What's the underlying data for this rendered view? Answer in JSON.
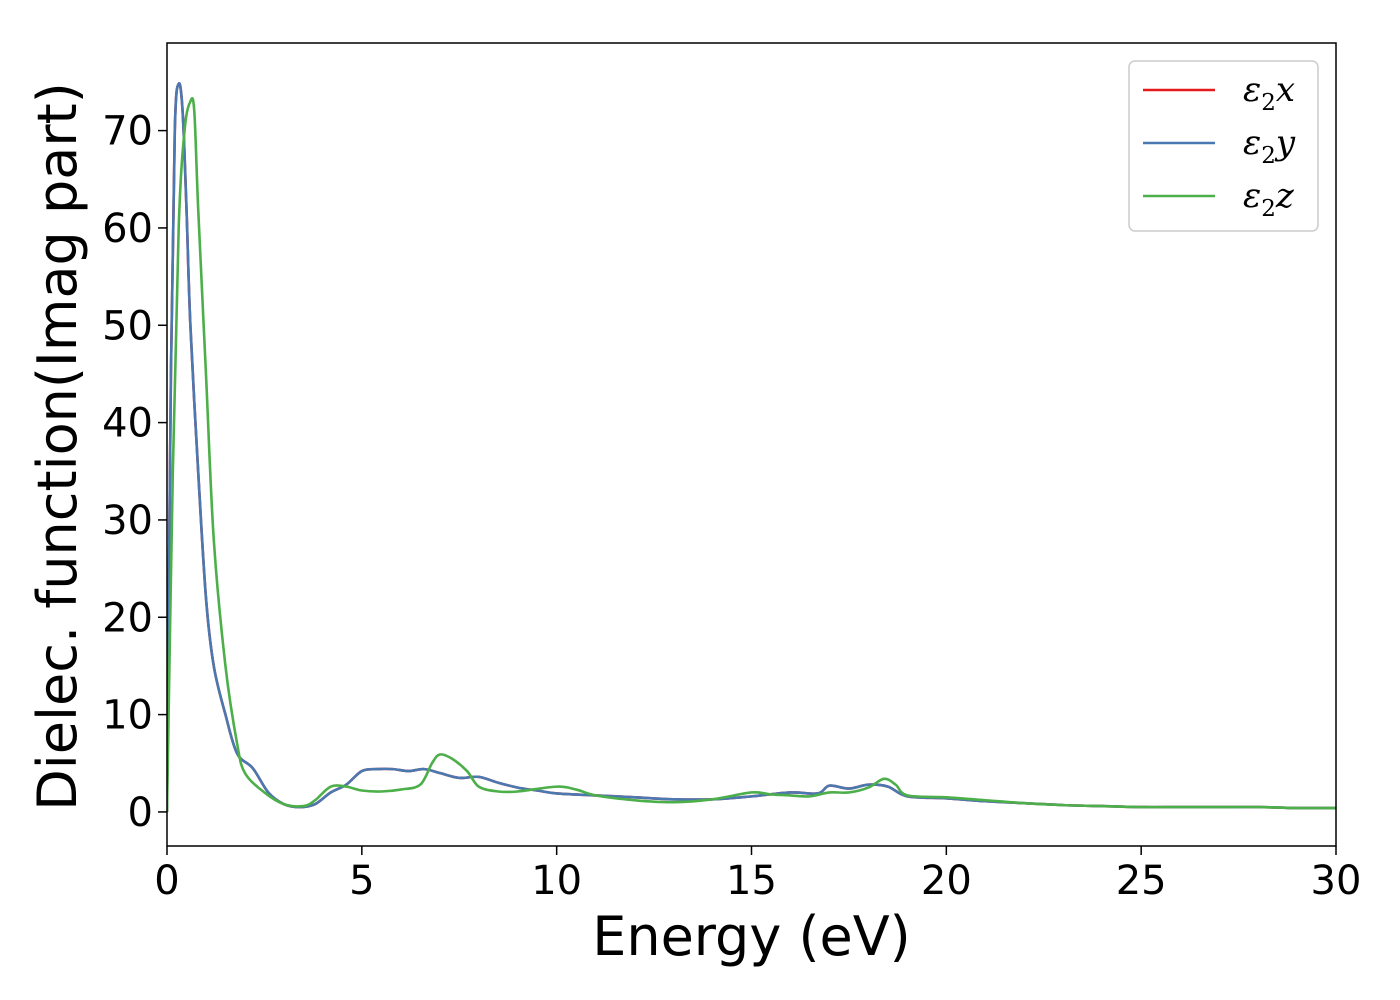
{
  "chart_data": {
    "type": "line",
    "title": "",
    "xlabel": "Energy (eV)",
    "ylabel": "Dielec. function(Imag part)",
    "xlim": [
      0,
      30
    ],
    "ylim": [
      -3.5,
      79
    ],
    "x_ticks": [
      0,
      5,
      10,
      15,
      20,
      25,
      30
    ],
    "y_ticks": [
      0,
      10,
      20,
      30,
      40,
      50,
      60,
      70
    ],
    "grid": false,
    "legend_position": "top-right",
    "series": [
      {
        "name": "ε2x",
        "legend_main": "ε",
        "legend_sub": "2",
        "legend_suffix": "x",
        "color": "#e41a1c",
        "points": [
          [
            0,
            0
          ],
          [
            0.1,
            45
          ],
          [
            0.2,
            70
          ],
          [
            0.3,
            74.8
          ],
          [
            0.4,
            72
          ],
          [
            0.5,
            62
          ],
          [
            0.6,
            50
          ],
          [
            0.8,
            35
          ],
          [
            1.0,
            22
          ],
          [
            1.2,
            15
          ],
          [
            1.5,
            10
          ],
          [
            1.8,
            6
          ],
          [
            2.2,
            4.5
          ],
          [
            2.6,
            2
          ],
          [
            3.0,
            0.8
          ],
          [
            3.4,
            0.5
          ],
          [
            3.8,
            0.8
          ],
          [
            4.2,
            2
          ],
          [
            4.6,
            2.8
          ],
          [
            5.0,
            4.2
          ],
          [
            5.4,
            4.4
          ],
          [
            5.8,
            4.4
          ],
          [
            6.2,
            4.2
          ],
          [
            6.6,
            4.4
          ],
          [
            7.0,
            4.0
          ],
          [
            7.5,
            3.5
          ],
          [
            8.0,
            3.6
          ],
          [
            8.5,
            3.0
          ],
          [
            9.0,
            2.5
          ],
          [
            9.5,
            2.2
          ],
          [
            10.0,
            1.9
          ],
          [
            11.0,
            1.7
          ],
          [
            12.0,
            1.5
          ],
          [
            13.0,
            1.3
          ],
          [
            14.0,
            1.3
          ],
          [
            15.0,
            1.6
          ],
          [
            16.0,
            2.0
          ],
          [
            16.7,
            1.9
          ],
          [
            17.0,
            2.7
          ],
          [
            17.5,
            2.4
          ],
          [
            18.0,
            2.8
          ],
          [
            18.5,
            2.6
          ],
          [
            19.0,
            1.6
          ],
          [
            20.0,
            1.4
          ],
          [
            21.0,
            1.1
          ],
          [
            22.0,
            0.9
          ],
          [
            23.0,
            0.7
          ],
          [
            24.0,
            0.6
          ],
          [
            25.0,
            0.5
          ],
          [
            26.0,
            0.5
          ],
          [
            27.0,
            0.5
          ],
          [
            28.0,
            0.5
          ],
          [
            29.0,
            0.4
          ],
          [
            30.0,
            0.4
          ]
        ]
      },
      {
        "name": "ε2y",
        "legend_main": "ε",
        "legend_sub": "2",
        "legend_suffix": "y",
        "color": "#4a78b0",
        "points": [
          [
            0,
            0
          ],
          [
            0.1,
            45
          ],
          [
            0.2,
            70
          ],
          [
            0.3,
            74.8
          ],
          [
            0.4,
            72
          ],
          [
            0.5,
            62
          ],
          [
            0.6,
            50
          ],
          [
            0.8,
            35
          ],
          [
            1.0,
            22
          ],
          [
            1.2,
            15
          ],
          [
            1.5,
            10
          ],
          [
            1.8,
            6
          ],
          [
            2.2,
            4.5
          ],
          [
            2.6,
            2
          ],
          [
            3.0,
            0.8
          ],
          [
            3.4,
            0.5
          ],
          [
            3.8,
            0.8
          ],
          [
            4.2,
            2
          ],
          [
            4.6,
            2.8
          ],
          [
            5.0,
            4.2
          ],
          [
            5.4,
            4.4
          ],
          [
            5.8,
            4.4
          ],
          [
            6.2,
            4.2
          ],
          [
            6.6,
            4.4
          ],
          [
            7.0,
            4.0
          ],
          [
            7.5,
            3.5
          ],
          [
            8.0,
            3.6
          ],
          [
            8.5,
            3.0
          ],
          [
            9.0,
            2.5
          ],
          [
            9.5,
            2.2
          ],
          [
            10.0,
            1.9
          ],
          [
            11.0,
            1.7
          ],
          [
            12.0,
            1.5
          ],
          [
            13.0,
            1.3
          ],
          [
            14.0,
            1.3
          ],
          [
            15.0,
            1.6
          ],
          [
            16.0,
            2.0
          ],
          [
            16.7,
            1.9
          ],
          [
            17.0,
            2.7
          ],
          [
            17.5,
            2.4
          ],
          [
            18.0,
            2.8
          ],
          [
            18.5,
            2.6
          ],
          [
            19.0,
            1.6
          ],
          [
            20.0,
            1.4
          ],
          [
            21.0,
            1.1
          ],
          [
            22.0,
            0.9
          ],
          [
            23.0,
            0.7
          ],
          [
            24.0,
            0.6
          ],
          [
            25.0,
            0.5
          ],
          [
            26.0,
            0.5
          ],
          [
            27.0,
            0.5
          ],
          [
            28.0,
            0.5
          ],
          [
            29.0,
            0.4
          ],
          [
            30.0,
            0.4
          ]
        ]
      },
      {
        "name": "ε2z",
        "legend_main": "ε",
        "legend_sub": "2",
        "legend_suffix": "z",
        "color": "#4daf4a",
        "points": [
          [
            0,
            0
          ],
          [
            0.15,
            35
          ],
          [
            0.3,
            60
          ],
          [
            0.45,
            70
          ],
          [
            0.6,
            73
          ],
          [
            0.7,
            72
          ],
          [
            0.8,
            62
          ],
          [
            1.0,
            45
          ],
          [
            1.2,
            28
          ],
          [
            1.5,
            15
          ],
          [
            1.8,
            7
          ],
          [
            2.0,
            4
          ],
          [
            2.5,
            2
          ],
          [
            3.0,
            0.8
          ],
          [
            3.5,
            0.6
          ],
          [
            3.8,
            1.2
          ],
          [
            4.2,
            2.6
          ],
          [
            4.6,
            2.6
          ],
          [
            5.0,
            2.2
          ],
          [
            5.5,
            2.1
          ],
          [
            6.0,
            2.3
          ],
          [
            6.5,
            2.8
          ],
          [
            6.8,
            5.0
          ],
          [
            7.0,
            5.9
          ],
          [
            7.3,
            5.5
          ],
          [
            7.7,
            4.2
          ],
          [
            8.0,
            2.6
          ],
          [
            8.5,
            2.1
          ],
          [
            9.0,
            2.1
          ],
          [
            10.0,
            2.6
          ],
          [
            10.5,
            2.3
          ],
          [
            11.0,
            1.7
          ],
          [
            12.0,
            1.2
          ],
          [
            13.0,
            1.0
          ],
          [
            14.0,
            1.3
          ],
          [
            15.0,
            2.0
          ],
          [
            15.5,
            1.8
          ],
          [
            16.0,
            1.7
          ],
          [
            16.5,
            1.6
          ],
          [
            17.0,
            2.0
          ],
          [
            17.5,
            2.0
          ],
          [
            18.0,
            2.5
          ],
          [
            18.4,
            3.4
          ],
          [
            18.7,
            2.8
          ],
          [
            19.0,
            1.7
          ],
          [
            20.0,
            1.5
          ],
          [
            21.0,
            1.2
          ],
          [
            22.0,
            0.9
          ],
          [
            23.0,
            0.7
          ],
          [
            24.0,
            0.6
          ],
          [
            25.0,
            0.5
          ],
          [
            26.0,
            0.5
          ],
          [
            27.0,
            0.5
          ],
          [
            28.0,
            0.5
          ],
          [
            29.0,
            0.4
          ],
          [
            30.0,
            0.4
          ]
        ]
      }
    ]
  }
}
